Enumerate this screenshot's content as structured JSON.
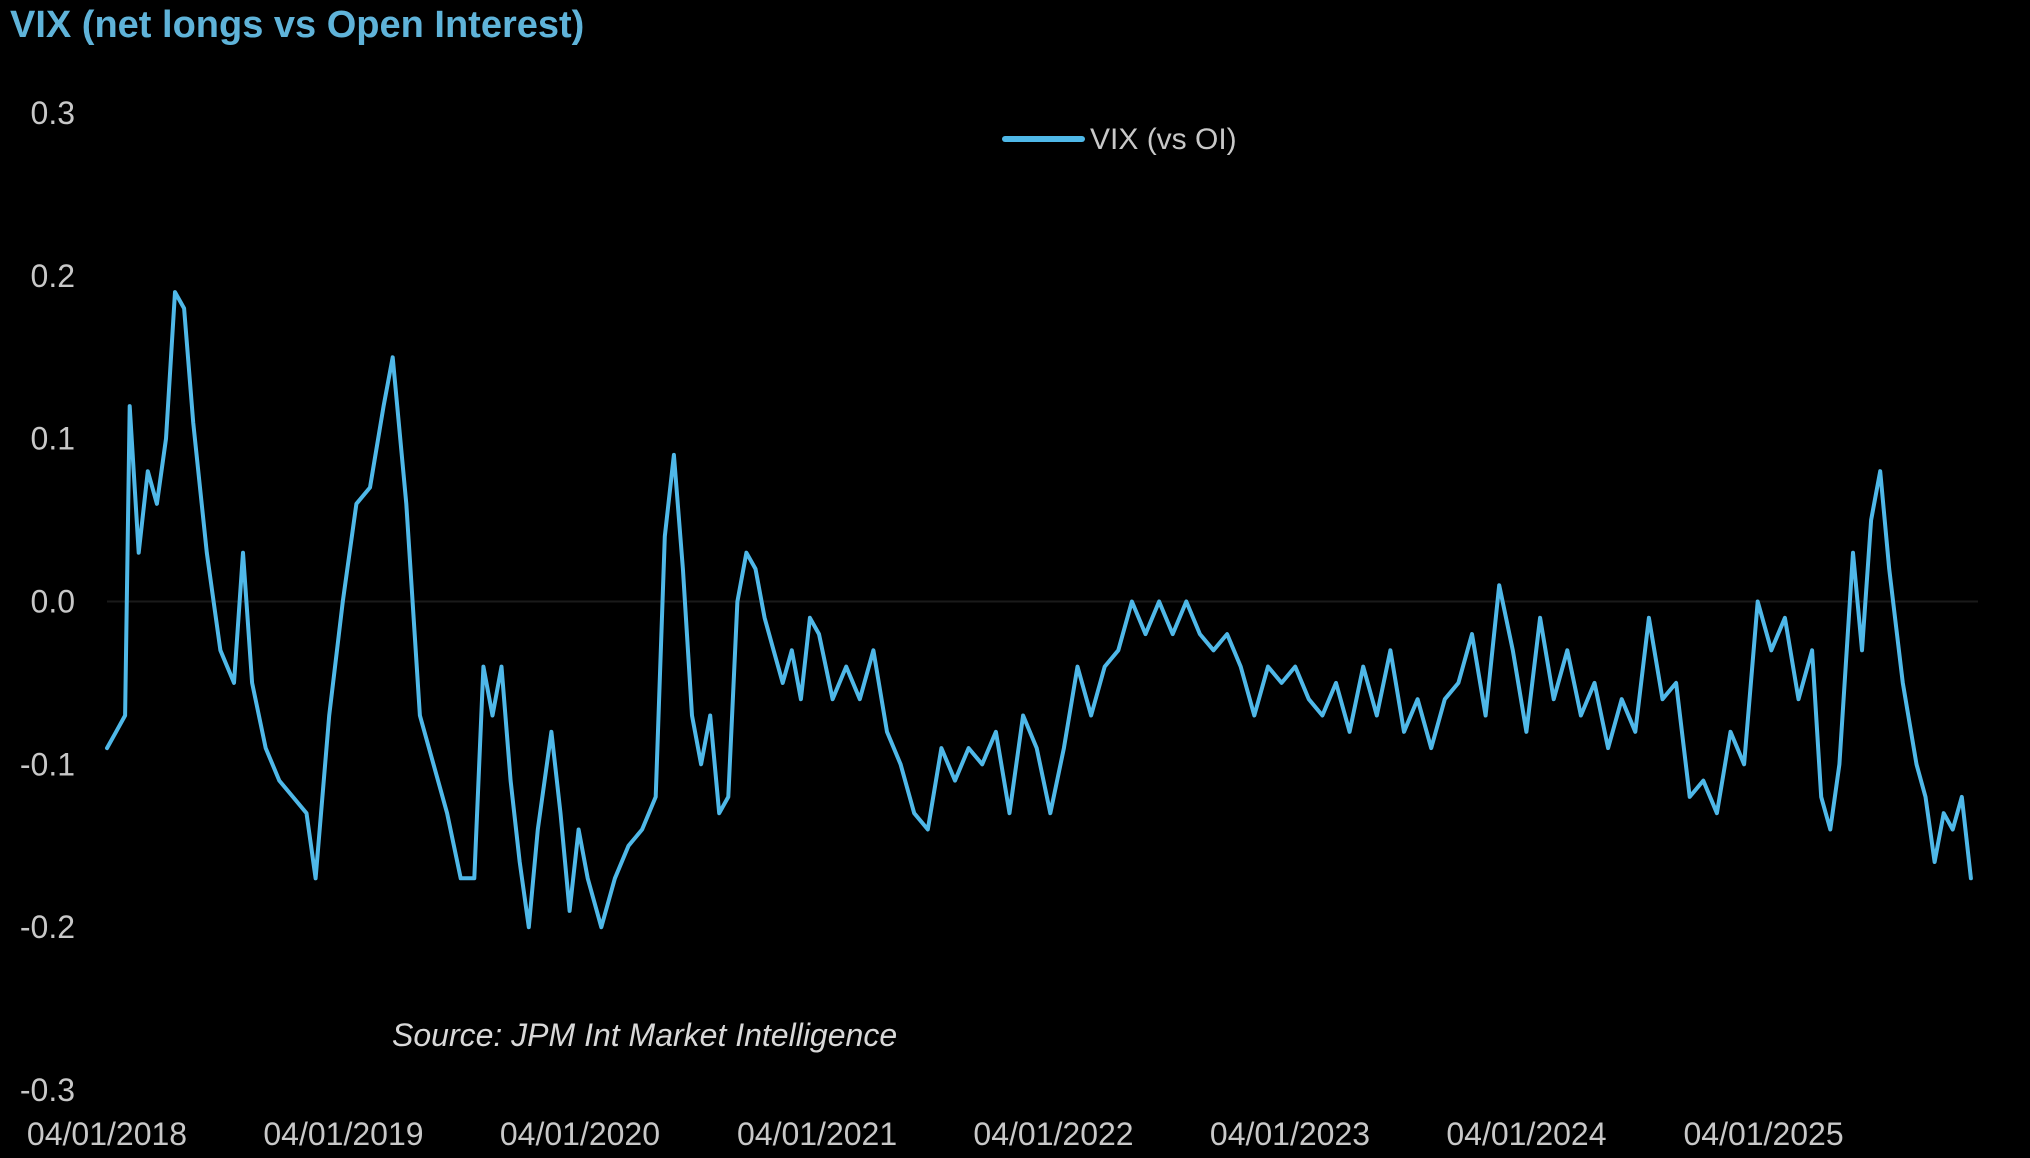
{
  "chart_data": {
    "type": "line",
    "title": "VIX (net longs vs Open Interest)",
    "xlabel": "",
    "ylabel": "",
    "ylim": [
      -0.3,
      0.3
    ],
    "yticks": [
      "0.3",
      "0.2",
      "0.1",
      "0.0",
      "-0.1",
      "-0.2",
      "-0.3"
    ],
    "ytick_values": [
      0.3,
      0.2,
      0.1,
      0.0,
      -0.1,
      -0.2,
      -0.3
    ],
    "xlim": [
      "2018-01-04",
      "2025-12-01"
    ],
    "xticks": [
      "04/01/2018",
      "04/01/2019",
      "04/01/2020",
      "04/01/2021",
      "04/01/2022",
      "04/01/2023",
      "04/01/2024",
      "04/01/2025"
    ],
    "xtick_dates": [
      "2018-01-04",
      "2019-01-04",
      "2020-01-04",
      "2021-01-04",
      "2022-01-04",
      "2023-01-04",
      "2024-01-04",
      "2025-01-04"
    ],
    "legend_position": "top-center",
    "grid": false,
    "zero_line": true,
    "annotation": "Source: JPM Int Market Intelligence",
    "series": [
      {
        "name": "VIX (vs OI)",
        "color": "#4fb8e8",
        "points": [
          [
            "2018-01-04",
            -0.09
          ],
          [
            "2018-01-18",
            -0.08
          ],
          [
            "2018-02-01",
            -0.07
          ],
          [
            "2018-02-08",
            0.12
          ],
          [
            "2018-02-22",
            0.03
          ],
          [
            "2018-03-08",
            0.08
          ],
          [
            "2018-03-22",
            0.06
          ],
          [
            "2018-04-05",
            0.1
          ],
          [
            "2018-04-19",
            0.19
          ],
          [
            "2018-05-03",
            0.18
          ],
          [
            "2018-05-17",
            0.11
          ],
          [
            "2018-06-07",
            0.03
          ],
          [
            "2018-06-28",
            -0.03
          ],
          [
            "2018-07-19",
            -0.05
          ],
          [
            "2018-08-02",
            0.03
          ],
          [
            "2018-08-16",
            -0.05
          ],
          [
            "2018-09-06",
            -0.09
          ],
          [
            "2018-09-27",
            -0.11
          ],
          [
            "2018-10-18",
            -0.12
          ],
          [
            "2018-11-08",
            -0.13
          ],
          [
            "2018-11-22",
            -0.17
          ],
          [
            "2018-12-13",
            -0.07
          ],
          [
            "2019-01-03",
            0.0
          ],
          [
            "2019-01-24",
            0.06
          ],
          [
            "2019-02-14",
            0.07
          ],
          [
            "2019-03-07",
            0.12
          ],
          [
            "2019-03-21",
            0.15
          ],
          [
            "2019-04-11",
            0.06
          ],
          [
            "2019-05-02",
            -0.07
          ],
          [
            "2019-05-23",
            -0.1
          ],
          [
            "2019-06-13",
            -0.13
          ],
          [
            "2019-07-04",
            -0.17
          ],
          [
            "2019-07-25",
            -0.17
          ],
          [
            "2019-08-08",
            -0.04
          ],
          [
            "2019-08-22",
            -0.07
          ],
          [
            "2019-09-05",
            -0.04
          ],
          [
            "2019-09-19",
            -0.11
          ],
          [
            "2019-10-03",
            -0.16
          ],
          [
            "2019-10-17",
            -0.2
          ],
          [
            "2019-10-31",
            -0.14
          ],
          [
            "2019-11-21",
            -0.08
          ],
          [
            "2019-12-05",
            -0.13
          ],
          [
            "2019-12-19",
            -0.19
          ],
          [
            "2020-01-02",
            -0.14
          ],
          [
            "2020-01-16",
            -0.17
          ],
          [
            "2020-02-06",
            -0.2
          ],
          [
            "2020-02-27",
            -0.17
          ],
          [
            "2020-03-19",
            -0.15
          ],
          [
            "2020-04-09",
            -0.14
          ],
          [
            "2020-04-30",
            -0.12
          ],
          [
            "2020-05-14",
            0.04
          ],
          [
            "2020-05-28",
            0.09
          ],
          [
            "2020-06-11",
            0.02
          ],
          [
            "2020-06-25",
            -0.07
          ],
          [
            "2020-07-09",
            -0.1
          ],
          [
            "2020-07-23",
            -0.07
          ],
          [
            "2020-08-06",
            -0.13
          ],
          [
            "2020-08-20",
            -0.12
          ],
          [
            "2020-09-03",
            0.0
          ],
          [
            "2020-09-17",
            0.03
          ],
          [
            "2020-10-01",
            0.02
          ],
          [
            "2020-10-15",
            -0.01
          ],
          [
            "2020-10-29",
            -0.03
          ],
          [
            "2020-11-12",
            -0.05
          ],
          [
            "2020-11-26",
            -0.03
          ],
          [
            "2020-12-10",
            -0.06
          ],
          [
            "2020-12-24",
            -0.01
          ],
          [
            "2021-01-07",
            -0.02
          ],
          [
            "2021-01-28",
            -0.06
          ],
          [
            "2021-02-18",
            -0.04
          ],
          [
            "2021-03-11",
            -0.06
          ],
          [
            "2021-04-01",
            -0.03
          ],
          [
            "2021-04-22",
            -0.08
          ],
          [
            "2021-05-13",
            -0.1
          ],
          [
            "2021-06-03",
            -0.13
          ],
          [
            "2021-06-24",
            -0.14
          ],
          [
            "2021-07-15",
            -0.09
          ],
          [
            "2021-08-05",
            -0.11
          ],
          [
            "2021-08-26",
            -0.09
          ],
          [
            "2021-09-16",
            -0.1
          ],
          [
            "2021-10-07",
            -0.08
          ],
          [
            "2021-10-28",
            -0.13
          ],
          [
            "2021-11-18",
            -0.07
          ],
          [
            "2021-12-09",
            -0.09
          ],
          [
            "2021-12-30",
            -0.13
          ],
          [
            "2022-01-20",
            -0.09
          ],
          [
            "2022-02-10",
            -0.04
          ],
          [
            "2022-03-03",
            -0.07
          ],
          [
            "2022-03-24",
            -0.04
          ],
          [
            "2022-04-14",
            -0.03
          ],
          [
            "2022-05-05",
            0.0
          ],
          [
            "2022-05-26",
            -0.02
          ],
          [
            "2022-06-16",
            0.0
          ],
          [
            "2022-07-07",
            -0.02
          ],
          [
            "2022-07-28",
            0.0
          ],
          [
            "2022-08-18",
            -0.02
          ],
          [
            "2022-09-08",
            -0.03
          ],
          [
            "2022-09-29",
            -0.02
          ],
          [
            "2022-10-20",
            -0.04
          ],
          [
            "2022-11-10",
            -0.07
          ],
          [
            "2022-12-01",
            -0.04
          ],
          [
            "2022-12-22",
            -0.05
          ],
          [
            "2023-01-12",
            -0.04
          ],
          [
            "2023-02-02",
            -0.06
          ],
          [
            "2023-02-23",
            -0.07
          ],
          [
            "2023-03-16",
            -0.05
          ],
          [
            "2023-04-06",
            -0.08
          ],
          [
            "2023-04-27",
            -0.04
          ],
          [
            "2023-05-18",
            -0.07
          ],
          [
            "2023-06-08",
            -0.03
          ],
          [
            "2023-06-29",
            -0.08
          ],
          [
            "2023-07-20",
            -0.06
          ],
          [
            "2023-08-10",
            -0.09
          ],
          [
            "2023-08-31",
            -0.06
          ],
          [
            "2023-09-21",
            -0.05
          ],
          [
            "2023-10-12",
            -0.02
          ],
          [
            "2023-11-02",
            -0.07
          ],
          [
            "2023-11-23",
            0.01
          ],
          [
            "2023-12-14",
            -0.03
          ],
          [
            "2024-01-04",
            -0.08
          ],
          [
            "2024-01-25",
            -0.01
          ],
          [
            "2024-02-15",
            -0.06
          ],
          [
            "2024-03-07",
            -0.03
          ],
          [
            "2024-03-28",
            -0.07
          ],
          [
            "2024-04-18",
            -0.05
          ],
          [
            "2024-05-09",
            -0.09
          ],
          [
            "2024-05-30",
            -0.06
          ],
          [
            "2024-06-20",
            -0.08
          ],
          [
            "2024-07-11",
            -0.01
          ],
          [
            "2024-08-01",
            -0.06
          ],
          [
            "2024-08-22",
            -0.05
          ],
          [
            "2024-09-12",
            -0.12
          ],
          [
            "2024-10-03",
            -0.11
          ],
          [
            "2024-10-24",
            -0.13
          ],
          [
            "2024-11-14",
            -0.08
          ],
          [
            "2024-12-05",
            -0.1
          ],
          [
            "2024-12-26",
            0.0
          ],
          [
            "2025-01-16",
            -0.03
          ],
          [
            "2025-02-06",
            -0.01
          ],
          [
            "2025-02-27",
            -0.06
          ],
          [
            "2025-03-20",
            -0.03
          ],
          [
            "2025-04-03",
            -0.12
          ],
          [
            "2025-04-17",
            -0.14
          ],
          [
            "2025-05-01",
            -0.1
          ],
          [
            "2025-05-22",
            0.03
          ],
          [
            "2025-06-05",
            -0.03
          ],
          [
            "2025-06-19",
            0.05
          ],
          [
            "2025-07-03",
            0.08
          ],
          [
            "2025-07-17",
            0.02
          ],
          [
            "2025-08-07",
            -0.05
          ],
          [
            "2025-08-28",
            -0.1
          ],
          [
            "2025-09-11",
            -0.12
          ],
          [
            "2025-09-25",
            -0.16
          ],
          [
            "2025-10-09",
            -0.13
          ],
          [
            "2025-10-23",
            -0.14
          ],
          [
            "2025-11-06",
            -0.12
          ],
          [
            "2025-11-20",
            -0.17
          ]
        ]
      }
    ]
  }
}
